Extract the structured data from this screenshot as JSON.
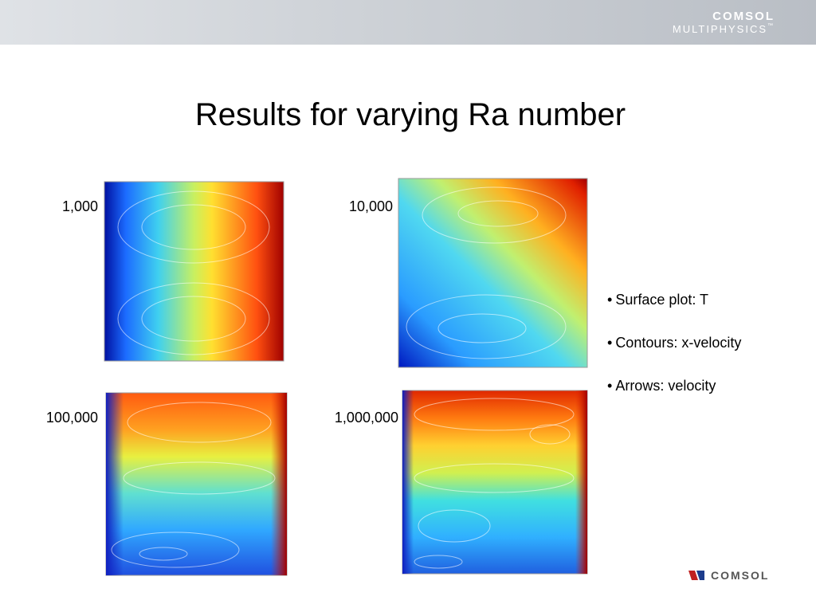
{
  "header": {
    "logo": {
      "name": "COMSOL",
      "product": "MULTIPHYSICS",
      "trademark": "™"
    }
  },
  "title": "Results for varying Ra number",
  "panels": [
    {
      "label": "1,000"
    },
    {
      "label": "10,000"
    },
    {
      "label": "100,000"
    },
    {
      "label": "1,000,000"
    }
  ],
  "bullets": [
    "Surface plot: T",
    "Contours: x-velocity",
    "Arrows: velocity"
  ],
  "footer": {
    "logo": "COMSOL"
  }
}
